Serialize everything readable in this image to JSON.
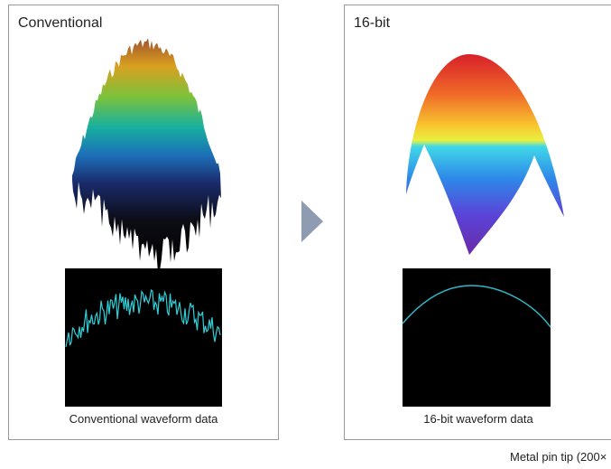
{
  "panels": [
    {
      "title": "Conventional",
      "caption": "Conventional waveform data"
    },
    {
      "title": "16-bit",
      "caption": "16-bit waveform data"
    }
  ],
  "footer": {
    "caption": "Metal pin tip (200×"
  }
}
